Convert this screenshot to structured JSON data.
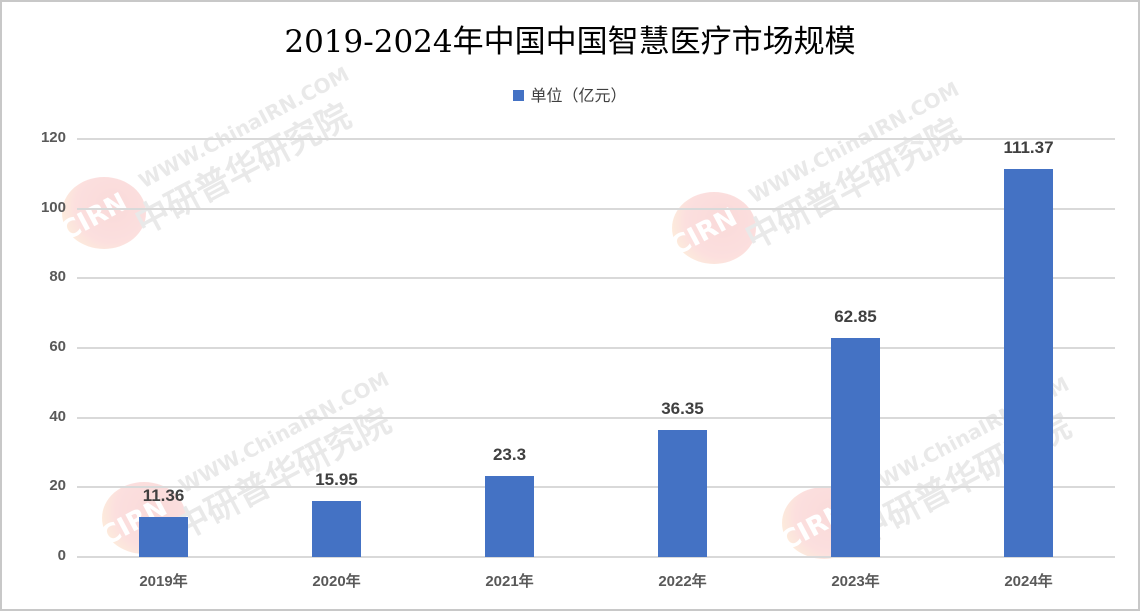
{
  "chart_data": {
    "type": "bar",
    "title": "2019-2024年中国中国智慧医疗市场规模",
    "legend": [
      "单位（亿元）"
    ],
    "legend_position": "top",
    "categories": [
      "2019年",
      "2020年",
      "2021年",
      "2022年",
      "2023年",
      "2024年"
    ],
    "series": [
      {
        "name": "单位（亿元）",
        "values": [
          11.36,
          15.95,
          23.3,
          36.35,
          62.85,
          111.37
        ],
        "color": "#4472c4"
      }
    ],
    "data_labels": [
      "11.36",
      "15.95",
      "23.3",
      "36.35",
      "62.85",
      "111.37"
    ],
    "xlabel": "",
    "ylabel": "",
    "ylim": [
      0,
      120
    ],
    "yticks": [
      "0",
      "20",
      "40",
      "60",
      "80",
      "100",
      "120"
    ],
    "grid": true
  },
  "watermark": {
    "url_text": "WWW.ChinaIRN.COM",
    "name_text": "中研普华研究院",
    "logo_text": "CIRN"
  }
}
